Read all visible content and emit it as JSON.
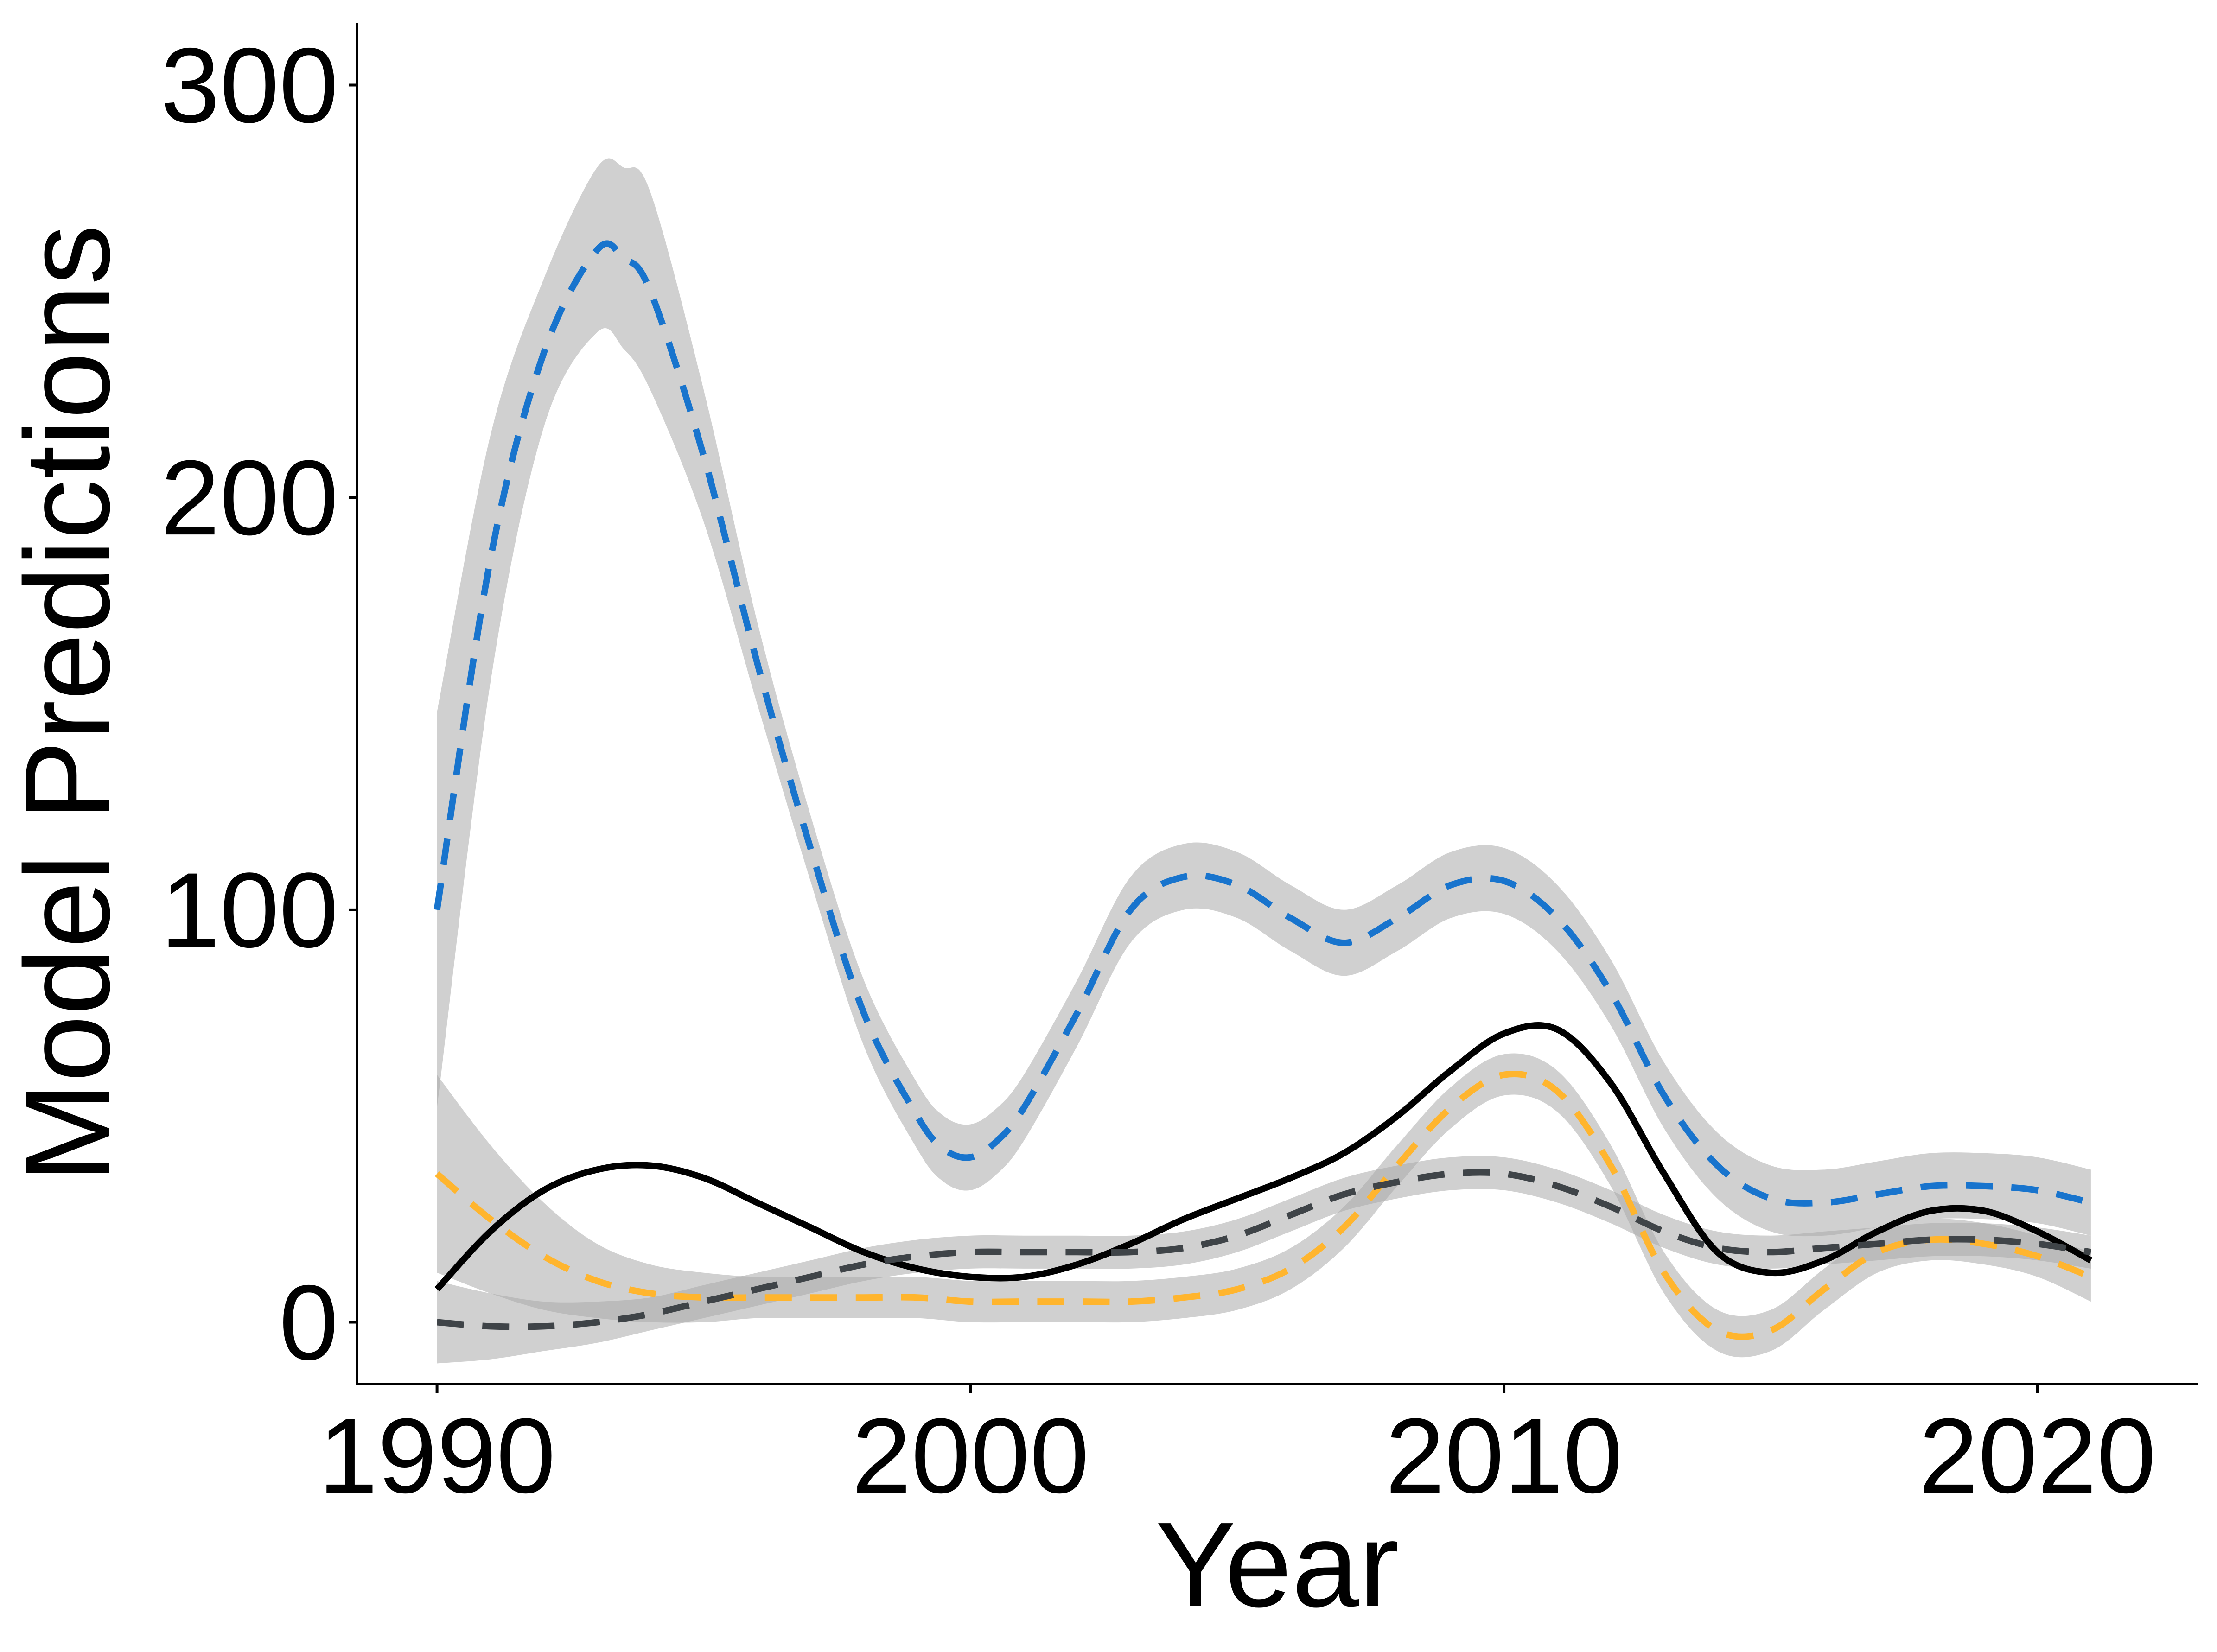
{
  "chart_data": {
    "type": "line",
    "title": "",
    "xlabel": "Year",
    "ylabel": "Model Predictions",
    "xlim": [
      1988.5,
      2023
    ],
    "ylim": [
      -15,
      315
    ],
    "x_ticks": [
      "1990",
      "2000",
      "2010",
      "2020"
    ],
    "y_ticks": [
      "0",
      "100",
      "200",
      "300"
    ],
    "grid": false,
    "legend": "none",
    "series": [
      {
        "name": "blue-dashed",
        "style": "dashed",
        "color": "#1874CD",
        "x": [
          1990,
          1991,
          1992,
          1993,
          1993.5,
          1994,
          1995,
          1996,
          1997,
          1998,
          1999,
          1999.5,
          2000,
          2000.5,
          2001,
          2002,
          2003,
          2004,
          2005,
          2006,
          2007,
          2008,
          2009,
          2010,
          2011,
          2012,
          2013,
          2014,
          2015,
          2016,
          2017,
          2018,
          2019,
          2020,
          2021
        ],
        "values": [
          100,
          185,
          235,
          260,
          258,
          250,
          210,
          160,
          115,
          75,
          50,
          42,
          40,
          44,
          52,
          75,
          100,
          108,
          106,
          98,
          92,
          98,
          106,
          107,
          98,
          80,
          55,
          38,
          30,
          29,
          31,
          33,
          33,
          32,
          29
        ],
        "band_width": [
          48,
          30,
          18,
          20,
          22,
          24,
          16,
          10,
          8,
          8,
          8,
          8,
          8,
          8,
          8,
          8,
          8,
          8,
          8,
          8,
          8,
          8,
          8,
          8,
          8,
          8,
          8,
          8,
          8,
          8,
          8,
          8,
          8,
          8,
          8
        ]
      },
      {
        "name": "black-solid",
        "style": "solid",
        "color": "#000000",
        "x": [
          1990,
          1991,
          1992,
          1993,
          1994,
          1995,
          1996,
          1997,
          1998,
          1999,
          2000,
          2001,
          2002,
          2003,
          2004,
          2005,
          2006,
          2007,
          2008,
          2009,
          2010,
          2011,
          2012,
          2013,
          2014,
          2015,
          2016,
          2017,
          2018,
          2019,
          2020,
          2021
        ],
        "values": [
          8,
          22,
          32,
          37,
          38,
          35,
          29,
          23,
          17,
          13,
          11,
          11,
          14,
          19,
          25,
          30,
          35,
          41,
          50,
          61,
          70,
          71,
          58,
          36,
          17,
          12,
          15,
          22,
          27,
          27,
          22,
          15
        ],
        "band_width": []
      },
      {
        "name": "yellow-dashed",
        "style": "dashed",
        "color": "#FFB52E",
        "x": [
          1990,
          1991,
          1992,
          1993,
          1994,
          1995,
          1996,
          1997,
          1998,
          1999,
          2000,
          2001,
          2002,
          2003,
          2004,
          2005,
          2006,
          2007,
          2008,
          2009,
          2010,
          2011,
          2012,
          2013,
          2014,
          2015,
          2016,
          2017,
          2018,
          2019,
          2020,
          2021
        ],
        "values": [
          36,
          25,
          16,
          10,
          7,
          6,
          6,
          6,
          6,
          6,
          5,
          5,
          5,
          5,
          6,
          8,
          13,
          23,
          38,
          52,
          60,
          56,
          38,
          12,
          -2,
          -2,
          8,
          17,
          20,
          19,
          16,
          11
        ],
        "band_width": [
          24,
          18,
          13,
          9,
          7,
          6,
          5,
          5,
          5,
          5,
          5,
          5,
          5,
          5,
          5,
          5,
          5,
          5,
          5,
          5,
          5,
          5,
          5,
          5,
          5,
          5,
          5,
          5,
          5,
          5,
          5,
          6
        ]
      },
      {
        "name": "gray-dashed",
        "style": "dashed",
        "color": "#3F4448",
        "x": [
          1990,
          1991,
          1992,
          1993,
          1994,
          1995,
          1996,
          1997,
          1998,
          1999,
          2000,
          2001,
          2002,
          2003,
          2004,
          2005,
          2006,
          2007,
          2008,
          2009,
          2010,
          2011,
          2012,
          2013,
          2014,
          2015,
          2016,
          2017,
          2018,
          2019,
          2020,
          2021
        ],
        "values": [
          0,
          -1,
          -1,
          0,
          2,
          5,
          8,
          11,
          14,
          16,
          17,
          17,
          17,
          17,
          18,
          21,
          26,
          31,
          34,
          36,
          36,
          33,
          28,
          22,
          18,
          17,
          18,
          19,
          20,
          20,
          19,
          17
        ],
        "band_width": [
          10,
          8,
          6,
          5,
          4,
          4,
          4,
          4,
          4,
          4,
          4,
          4,
          4,
          4,
          4,
          4,
          4,
          4,
          4,
          4,
          4,
          4,
          4,
          4,
          4,
          4,
          4,
          4,
          4,
          4,
          4,
          4
        ]
      }
    ]
  }
}
